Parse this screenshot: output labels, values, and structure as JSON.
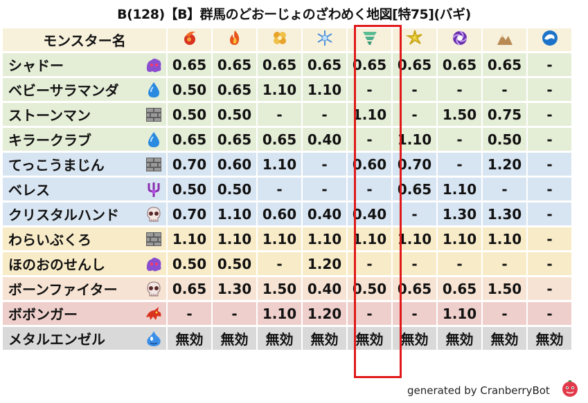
{
  "title": "B(128)【B】群馬のどおーじょのざわめく地図[特75](バギ)",
  "header": {
    "name_label": "モンスター名",
    "elements": [
      {
        "icon": "fire-ball-icon",
        "color": "#d9331f"
      },
      {
        "icon": "flame-icon",
        "color": "#e8531c"
      },
      {
        "icon": "explosion-icon",
        "color": "#e8a42a"
      },
      {
        "icon": "ice-icon",
        "color": "#7bb8ea"
      },
      {
        "icon": "wind-tornado-icon",
        "color": "#4fae8a"
      },
      {
        "icon": "lightning-icon",
        "color": "#e8d23a"
      },
      {
        "icon": "darkness-icon",
        "color": "#6a2fb0"
      },
      {
        "icon": "earth-icon",
        "color": "#b98a54"
      },
      {
        "icon": "water-wave-icon",
        "color": "#1c73c9"
      }
    ]
  },
  "rows": [
    {
      "name": "シャドー",
      "icon": "shadow-icon",
      "bg": "#e4edd6",
      "values": [
        "0.65",
        "0.65",
        "0.65",
        "0.65",
        "0.65",
        "0.65",
        "0.65",
        "0.65",
        "-"
      ],
      "colors": [
        "blue",
        "blue",
        "blue",
        "blue",
        "blue",
        "blue",
        "blue",
        "blue",
        "dash"
      ]
    },
    {
      "name": "ベビーサラマンダ",
      "icon": "water-drop-icon",
      "bg": "#e4edd6",
      "values": [
        "0.50",
        "0.65",
        "1.10",
        "1.10",
        "-",
        "-",
        "-",
        "-",
        "-"
      ],
      "colors": [
        "blue",
        "blue",
        "orange",
        "orange",
        "dash",
        "dash",
        "dash",
        "dash",
        "dash"
      ]
    },
    {
      "name": "ストーンマン",
      "icon": "brick-wall-icon",
      "bg": "#e4edd6",
      "values": [
        "0.50",
        "0.50",
        "-",
        "-",
        "1.10",
        "-",
        "1.50",
        "0.75",
        "-"
      ],
      "colors": [
        "blue",
        "blue",
        "dash",
        "dash",
        "orange",
        "dash",
        "red",
        "sky",
        "dash"
      ]
    },
    {
      "name": "キラークラブ",
      "icon": "water-drop-icon",
      "bg": "#e4edd6",
      "values": [
        "0.65",
        "0.65",
        "0.65",
        "0.40",
        "-",
        "1.10",
        "-",
        "0.50",
        "-"
      ],
      "colors": [
        "blue",
        "blue",
        "blue",
        "blue",
        "dash",
        "orange",
        "dash",
        "blue",
        "dash"
      ]
    },
    {
      "name": "てっこうまじん",
      "icon": "brick-wall-icon",
      "bg": "#d7e4f1",
      "values": [
        "0.70",
        "0.60",
        "1.10",
        "-",
        "0.60",
        "0.70",
        "-",
        "1.20",
        "-"
      ],
      "colors": [
        "blue",
        "blue",
        "orange",
        "dash",
        "blue",
        "blue",
        "dash",
        "orange",
        "dash"
      ]
    },
    {
      "name": "ベレス",
      "icon": "demon-trident-icon",
      "bg": "#d7e4f1",
      "values": [
        "0.50",
        "0.50",
        "-",
        "-",
        "-",
        "0.65",
        "1.10",
        "-",
        "-"
      ],
      "colors": [
        "blue",
        "blue",
        "dash",
        "dash",
        "dash",
        "blue",
        "orange",
        "dash",
        "dash"
      ]
    },
    {
      "name": "クリスタルハンド",
      "icon": "skull-icon",
      "bg": "#d7e4f1",
      "values": [
        "0.70",
        "1.10",
        "0.60",
        "0.40",
        "0.40",
        "-",
        "1.30",
        "1.30",
        "-"
      ],
      "colors": [
        "blue",
        "orange",
        "blue",
        "blue",
        "blue",
        "dash",
        "red",
        "red",
        "dash"
      ]
    },
    {
      "name": "わらいぶくろ",
      "icon": "brick-wall-icon",
      "bg": "#f8ebc8",
      "values": [
        "1.10",
        "1.10",
        "1.10",
        "1.10",
        "1.10",
        "1.10",
        "1.10",
        "1.10",
        "-"
      ],
      "colors": [
        "orange",
        "orange",
        "orange",
        "orange",
        "orange",
        "orange",
        "orange",
        "orange",
        "dash"
      ]
    },
    {
      "name": "ほのおのせんし",
      "icon": "shadow-icon",
      "bg": "#f8ebc8",
      "values": [
        "0.50",
        "0.50",
        "-",
        "1.20",
        "-",
        "-",
        "-",
        "-",
        "-"
      ],
      "colors": [
        "blue",
        "blue",
        "dash",
        "orange",
        "dash",
        "dash",
        "dash",
        "dash",
        "dash"
      ]
    },
    {
      "name": "ボーンファイター",
      "icon": "skull-icon",
      "bg": "#f7e3d3",
      "values": [
        "0.65",
        "1.30",
        "1.50",
        "0.40",
        "0.50",
        "0.65",
        "0.65",
        "1.50",
        "-"
      ],
      "colors": [
        "blue",
        "red",
        "red",
        "blue",
        "blue",
        "blue",
        "blue",
        "red",
        "dash"
      ]
    },
    {
      "name": "ボボンガー",
      "icon": "dragon-icon",
      "bg": "#eecfcb",
      "values": [
        "-",
        "-",
        "1.10",
        "1.20",
        "-",
        "-",
        "1.10",
        "-",
        "-"
      ],
      "colors": [
        "dash",
        "dash",
        "orange",
        "orange",
        "dash",
        "dash",
        "orange",
        "dash",
        "dash"
      ]
    },
    {
      "name": "メタルエンゼル",
      "icon": "metal-slime-icon",
      "bg": "#d9d9d9",
      "values": [
        "無効",
        "無効",
        "無効",
        "無効",
        "無効",
        "無効",
        "無効",
        "無効",
        "無効"
      ],
      "colors": [
        "black",
        "black",
        "black",
        "black",
        "black",
        "black",
        "black",
        "black",
        "black"
      ]
    }
  ],
  "footer": {
    "text": "generated by CranberryBot",
    "logo": "cranberry-logo-icon"
  },
  "highlight_column": 5
}
